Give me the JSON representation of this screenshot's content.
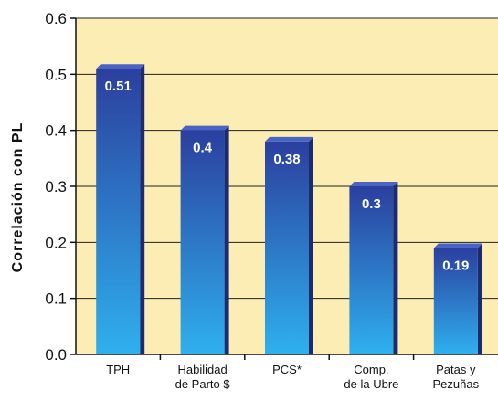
{
  "chart_data": {
    "type": "bar",
    "title": "",
    "xlabel": "",
    "ylabel": "Correlación con PL",
    "categories": [
      [
        "TPH"
      ],
      [
        "Habilidad",
        "de Parto $"
      ],
      [
        "PCS*"
      ],
      [
        "Comp.",
        "de la Ubre"
      ],
      [
        "Patas y",
        "Pezuñas"
      ]
    ],
    "values": [
      0.51,
      0.4,
      0.38,
      0.3,
      0.19
    ],
    "data_labels": [
      "0.51",
      "0.4",
      "0.38",
      "0.3",
      "0.19"
    ],
    "ylim": [
      0,
      0.6
    ],
    "yticks": [
      0.0,
      0.1,
      0.2,
      0.3,
      0.4,
      0.5,
      0.6
    ],
    "ytick_labels": [
      "0.0",
      "0.1",
      "0.2",
      "0.3",
      "0.4",
      "0.5",
      "0.6"
    ],
    "grid": true,
    "colors": {
      "plot_background": "#fbedb4",
      "bar_top": "#2b3f9e",
      "bar_bottom": "#2fb0ee",
      "bar_side": "#1c2a6e",
      "bar_cap": "#4a63c4",
      "gridline": "#222222",
      "axis": "#111111"
    }
  }
}
